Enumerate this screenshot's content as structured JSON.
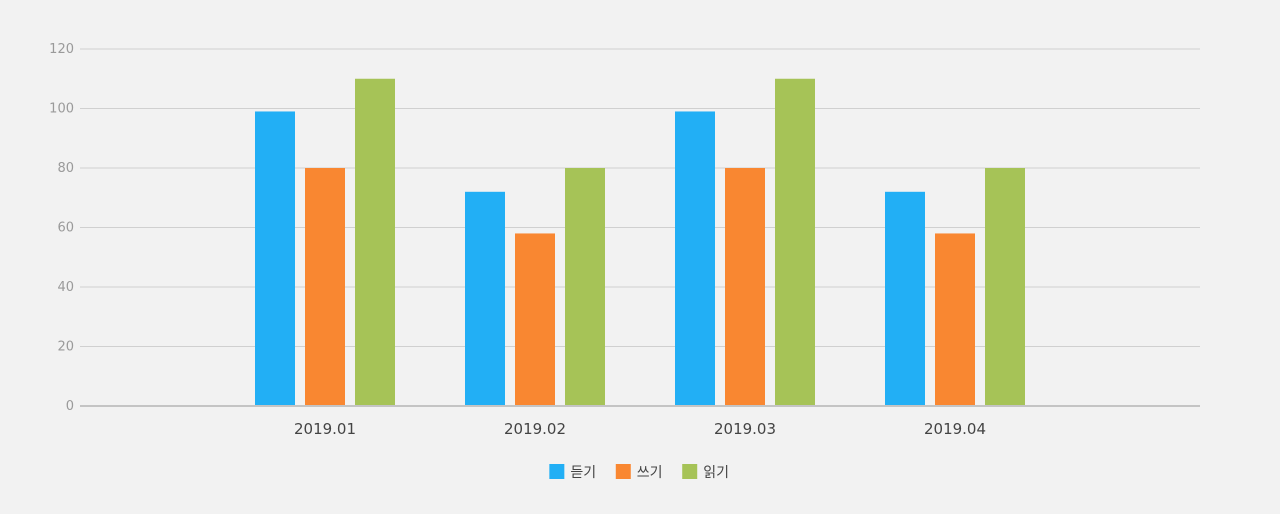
{
  "chart_data": {
    "type": "bar",
    "categories": [
      "2019.01",
      "2019.02",
      "2019.03",
      "2019.04"
    ],
    "series": [
      {
        "name": "듣기",
        "color": "#22aff5",
        "values": [
          99,
          72,
          99,
          72
        ]
      },
      {
        "name": "쓰기",
        "color": "#f98731",
        "values": [
          80,
          58,
          80,
          58
        ]
      },
      {
        "name": "읽기",
        "color": "#a6c357",
        "values": [
          110,
          80,
          110,
          80
        ]
      }
    ],
    "ylim": [
      0,
      120
    ],
    "yticks": [
      0,
      20,
      40,
      60,
      80,
      100,
      120
    ],
    "title": "",
    "xlabel": "",
    "ylabel": "",
    "grid": true,
    "legend_position": "bottom-center",
    "background_color": "#f2f2f2",
    "grid_color": "#d0d0d0"
  }
}
